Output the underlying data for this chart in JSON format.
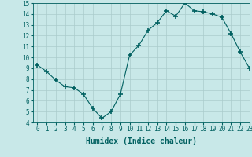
{
  "x": [
    0,
    1,
    2,
    3,
    4,
    5,
    6,
    7,
    8,
    9,
    10,
    11,
    12,
    13,
    14,
    15,
    16,
    17,
    18,
    19,
    20,
    21,
    22,
    23
  ],
  "y": [
    9.3,
    8.7,
    7.9,
    7.3,
    7.2,
    6.6,
    5.3,
    4.4,
    5.0,
    6.6,
    10.2,
    11.1,
    12.5,
    13.2,
    14.3,
    13.8,
    15.0,
    14.3,
    14.2,
    14.0,
    13.7,
    12.2,
    10.5,
    9.0
  ],
  "line_color": "#006060",
  "marker": "+",
  "marker_color": "#006060",
  "bg_color": "#c8e8e8",
  "grid_color": "#aacccc",
  "xlabel": "Humidex (Indice chaleur)",
  "ylim": [
    4,
    15
  ],
  "xlim": [
    -0.5,
    23
  ],
  "yticks": [
    4,
    5,
    6,
    7,
    8,
    9,
    10,
    11,
    12,
    13,
    14,
    15
  ],
  "xticks": [
    0,
    1,
    2,
    3,
    4,
    5,
    6,
    7,
    8,
    9,
    10,
    11,
    12,
    13,
    14,
    15,
    16,
    17,
    18,
    19,
    20,
    21,
    22,
    23
  ],
  "tick_color": "#006060",
  "label_color": "#006060",
  "tick_fontsize": 5.5,
  "xlabel_fontsize": 7
}
